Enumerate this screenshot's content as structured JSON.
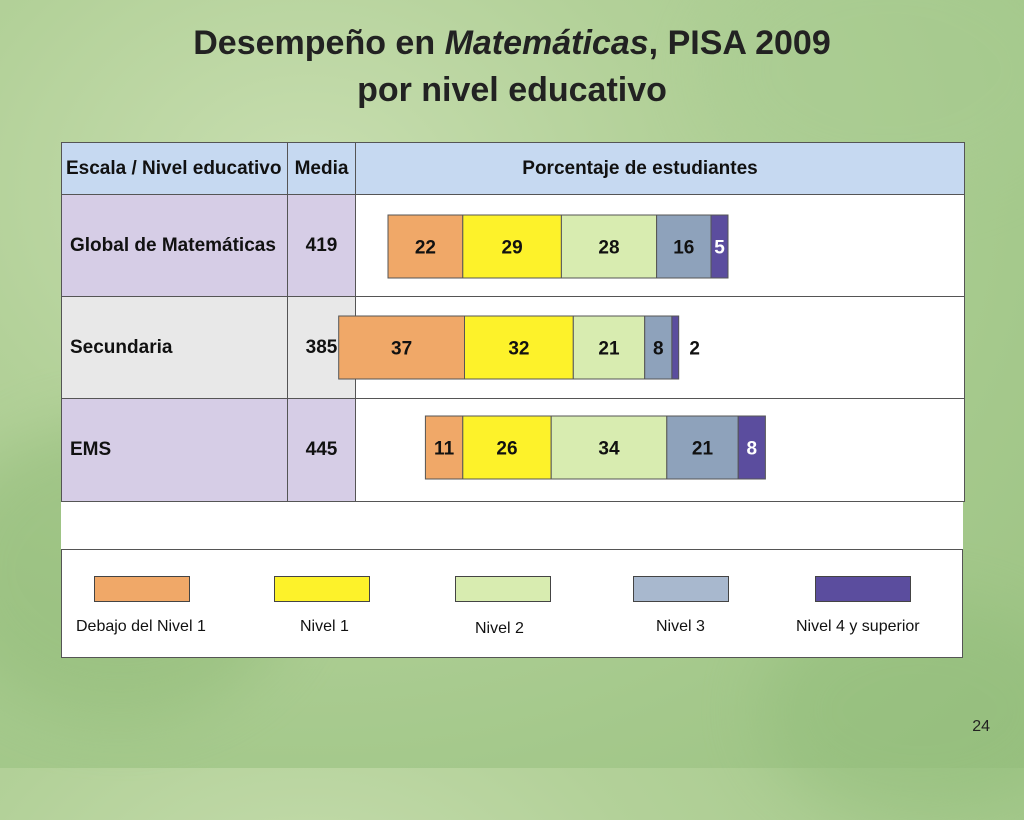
{
  "title": {
    "part1": "Desempeño en ",
    "part2_italic": "Matemáticas",
    "part3": ", PISA 2009",
    "line2": "por nivel educativo"
  },
  "table": {
    "headers": {
      "escala": "Escala / Nivel educativo",
      "media": "Media",
      "porcentaje": "Porcentaje de estudiantes"
    },
    "rows": [
      {
        "label": "Global de Matemáticas",
        "media": "419"
      },
      {
        "label": "Secundaria",
        "media": "385"
      },
      {
        "label": "EMS",
        "media": "445"
      }
    ]
  },
  "chart_data": {
    "type": "bar",
    "orientation": "horizontal-stacked",
    "categories": [
      "Global de Matemáticas",
      "Secundaria",
      "EMS"
    ],
    "series": [
      {
        "name": "Debajo del Nivel 1",
        "color": "#f0a868",
        "values": [
          22,
          37,
          11
        ]
      },
      {
        "name": "Nivel 1",
        "color": "#fdf22a",
        "values": [
          29,
          32,
          26
        ]
      },
      {
        "name": "Nivel 2",
        "color": "#d8ecb0",
        "values": [
          28,
          21,
          34
        ]
      },
      {
        "name": "Nivel 3",
        "color": "#8ea2bb",
        "values": [
          16,
          8,
          21
        ]
      },
      {
        "name": "Nivel 4 y superior",
        "color": "#5b4d9e",
        "values": [
          5,
          2,
          8
        ]
      }
    ],
    "legend_placement": "bottom"
  },
  "page_number": "24"
}
